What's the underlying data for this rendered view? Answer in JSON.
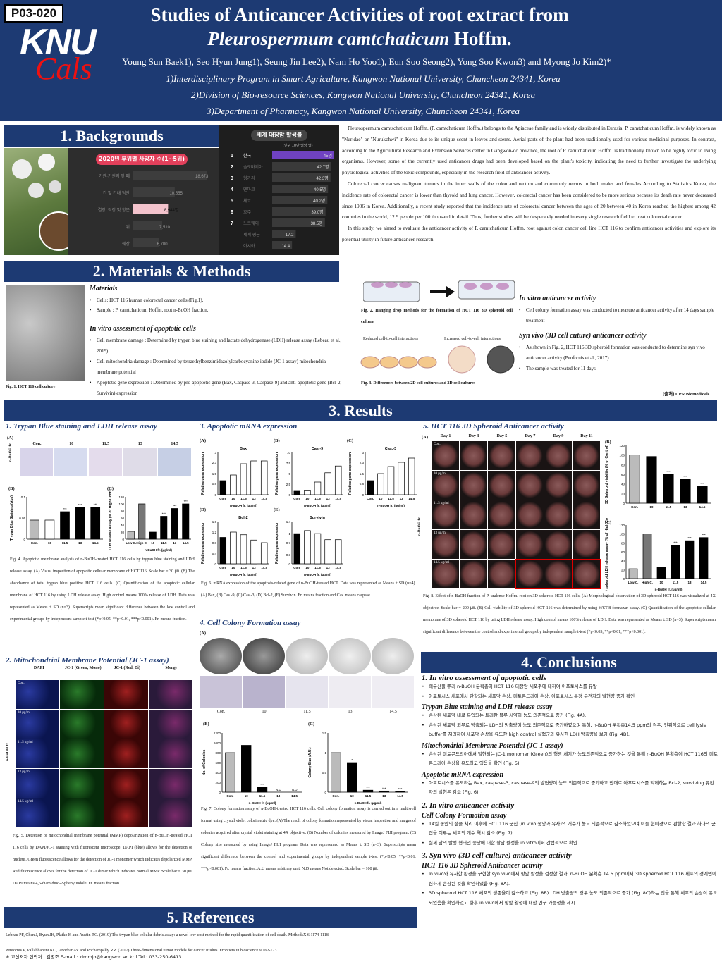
{
  "poster_id": "P03-020",
  "logo": {
    "text1": "KNU",
    "text2": "Cals"
  },
  "title": {
    "line1": "Studies of Anticancer Activities of root extract from",
    "line2_italic": "Pleurospermum camtchaticum",
    "line2_rest": " Hoffm."
  },
  "authors": "Young Sun Baek1), Seo Hyun Jung1), Seung Jin Lee2), Nam Ho Yoo1), Eun Soo Seong2), Yong Soo Kwon3) and Myong Jo Kim2)*",
  "affiliations": [
    "1)Interdisciplinary Program in Smart Agriculture, Kangwon National University, Chuncheon 24341, Korea",
    "2)Division of Bio-resource Sciences, Kangwon National University, Chuncheon 24341, Korea",
    "3)Department of Pharmacy, Kangwon National University, Chuncheon 24341, Korea"
  ],
  "sections": {
    "backgrounds": "1. Backgrounds",
    "methods": "2. Materials & Methods",
    "results": "3. Results",
    "conclusions": "4. Conclusions",
    "references": "5. References"
  },
  "bg_chart1": {
    "title": "2020년 부위별 사망자 수(1~5위)",
    "rows": [
      {
        "label": "기관·기관지 및 폐",
        "value": "18,673",
        "v": 100
      },
      {
        "label": "간 및 간내 담관",
        "value": "10,555",
        "v": 57
      },
      {
        "label": "결장, 직장 및 항문",
        "value": "8,944명",
        "v": 48,
        "highlight": true
      },
      {
        "label": "위",
        "value": "7,510",
        "v": 40
      },
      {
        "label": "췌장",
        "value": "6,700",
        "v": 36
      }
    ]
  },
  "bg_chart2": {
    "title": "세계 대장암 발생률",
    "subtitle": "(인구 10만 명당 명)",
    "rows": [
      {
        "n": "1",
        "label": "한국",
        "value": "45명",
        "v": 100,
        "highlight": true
      },
      {
        "n": "2",
        "label": "슬로바키아",
        "value": "42.7명",
        "v": 95
      },
      {
        "n": "3",
        "label": "헝가리",
        "value": "42.3명",
        "v": 94
      },
      {
        "n": "4",
        "label": "덴마크",
        "value": "40.5명",
        "v": 90
      },
      {
        "n": "5",
        "label": "체코",
        "value": "40.2명",
        "v": 89
      },
      {
        "n": "6",
        "label": "호주",
        "value": "39.0명",
        "v": 86
      },
      {
        "n": "7",
        "label": "노르웨이",
        "value": "38.5명",
        "v": 85
      },
      {
        "n": "",
        "label": "세계 평균",
        "value": "17.2",
        "v": 38
      },
      {
        "n": "",
        "label": "아시아",
        "value": "14.4",
        "v": 32
      }
    ]
  },
  "background_text": [
    "Pleurospermum camtschaticum Hoffm. (P. camtchaticum Hoffm.) belongs to the Apiaceae family and is widely distributed in Eurasia. P. camtchaticum Hoffm. is widely known as \"Nuridae\" or \"Nurukchwi\" in Korea due to its unique scent in leaves and stems. Aerial parts of the plant had been traditionally used for various medicinal purposes. In contrast, according to the Agricultural Research and Extension Services center in Gangwon-do province, the root of P. camtchaticum Hoffm. is traditionally known to be highly toxic to living organisms. However, some of the currently used anticancer drugs had been developed based on the plant's toxicity, indicating the need to further investigate the underlying physiological activities of the toxic compounds, especially in the research field of anticancer activity.",
    "Colorectal cancer causes malignant tumors in the inner walls of the colon and rectum and commonly occurs in both males and females According to Statistics Korea, the incidence rate of colorectal cancer is lower than thyroid and lung cancer. However, colorectal cancer has been considered to be more serious because its death rate never decreased since 1986 in Korea. Additionally, a recent study reported that the incidence rate of colorectal cancer between the ages of 20 between 40 in Korea reached the highest among 42 countries in the world, 12.9 people per 100 thousand in detail. Thus, further studies will be desperately needed in every single research field to treat colorectal cancer.",
    "In this study, we aimed to evaluate the anticancer activity of P. camtchaticum Hoffm. root against colon cancer cell line HCT 116 to confirm anticancer activities and explore its potential utility in future anticancer research."
  ],
  "methods": {
    "materials_h": "Materials",
    "materials": [
      "Cells: HCT 116 human colorectal cancer cells (Fig.1).",
      "Sample : P. camtchaticum Hoffm. root n-BuOH fraction."
    ],
    "apop_h": "In vitro assessment of apoptotic cells",
    "apop": [
      "Cell membrane damage : Determined by trypan blue staining and lactate dehydrogenase (LDH) release assay (Lebeau et al., 2019)",
      "Cell mitochondria damage : Determined by tetraethylbenzimidazolylcarbocyanine iodide (JC-1 assay) mitochondria membrane potential",
      "Apoptotic gene expression : Determined by pro-apoptotic gene (Bax, Caspase-3, Caspase-9) and anti-apoptotic gene (Bcl-2, Survivin) expression"
    ],
    "fig1": "Fig. 1. HCT 116 cell culture",
    "fig2": "Fig. 2. Hanging drop methods for the formation of HCT 116 3D spheroid cell culture",
    "fig3_a": "Reduced cell-to-cell interactions",
    "fig3_b": "Increased cell-to-cell interactions",
    "fig3": "Fig. 3. Differences between 2D cell cultures and 3D cell cultures",
    "vitro_h": "In vitro anticancer activity",
    "vitro": [
      "Cell colony formation assay was conducted to measure anticancer activity after 14 days sample treatment"
    ],
    "synvivo_h": "Syn vivo (3D cell cuture) anticancer activity",
    "synvivo": [
      "As shown in Fig. 2, HCT 116 3D spheroid formation was conducted to determine syn vivo anticancer activity (Penfornis et al., 2017).",
      "The sample was treated for 11 days"
    ],
    "source": "[출처] UPMBiomedicals"
  },
  "r1": {
    "head": "1. Trypan Blue staining and LDH release assay",
    "conc_labels": [
      "Con.",
      "10",
      "11.5",
      "13",
      "14.5"
    ],
    "ylabel_b": "Trypan Blue Staining (Abs)",
    "ylabel_c": "LDH release assay (% of High Control)",
    "xlabel": "n-BuOH fr. (μg/ml)",
    "side": "n-BuOH fr.",
    "caption": "Fig. 4. Apoptotic membrane analysis of n-BuOH-treated HCT 116 cells by trypan blue staining and LDH release assay. (A) Visual inspection of apoptotic cellular membrane of HCT 116. Scale bar = 30 ㎛. (B) The absorbance of total trypan blue positive HCT 116 cells. (C) Quantification of the apoptotic cellular membrane of HCT 116 by using LDH release assay. High control means 100% release of LDH. Data was represented as Means ± SD (n=3). Superscripts mean significant difference between the low control and experimental groups by independent sample t-test (*p<0.05, **p<0.01, ***p<0.001). Fr. means fraction."
  },
  "r2": {
    "head": "2. Mitochondrial Membrane Potential (JC-1 assay)",
    "cols": [
      "DAPI",
      "JC-1 (Green, Mono)",
      "JC-1 (Red, Di)",
      "Merge"
    ],
    "rows": [
      "Con.",
      "10 μg/ml",
      "11.5 μg/ml",
      "13 μg/ml",
      "14.5 μg/ml"
    ],
    "side": "n-BuOH fr.",
    "caption": "Fig. 5. Detection of mitochondrial membrane potential (MMP) depolarization of n-BuOH-treated HCT 116 cells by DAPI/JC-1 staining with fluorescent microscope. DAPI (blue) allows for the detection of nucleus. Green fluorescence allows for the detection of JC-1 monomer which indicates depolarized MMP. Red fluorescence allows for the detection of JC-1 dimer which indicates normal MMP. Scale bar = 30 ㎛. DAPI means 4,6-diamidino-2-phenylindole. Fr. means fraction."
  },
  "r3": {
    "head": "3. Apoptotic mRNA expression",
    "genes": [
      "Bax",
      "Cas.-9",
      "Cas.-3",
      "Bcl-2",
      "Survivin"
    ],
    "ylabel": "Relative gene expression",
    "xlabel": "n-BuOH fr. (μg/ml)",
    "caption": "Fig. 6. mRNA expression of the apoptosis-related gene of n-BuOH-treated HCT. Data was represented as Means ± SD (n=4). (A) Bax, (B) Cas.-9, (C) Cas.-3, (D) Bcl-2, (E) Survivin. Fr. means fraction and Cas. means caspase."
  },
  "r4": {
    "head": "4. Cell Colony Formation assay",
    "ylabel_b": "No. of Colonies",
    "ylabel_c": "Colony Size (A.U.)",
    "xlabel": "n-BuOH fr. (μg/ml)",
    "nd": "N.D",
    "caption": "Fig. 7. Colony formation assay of n-BuOH-treated HCT 116 cells. Cell colony formation assay is carried out in a multiwell format using crystal violet colorimetric dye. (A) The result of colony formation represented by visual inspection and images of colonies acquired after crystal violet staining at 4X objective. (B) Number of colonies measured by ImageJ FIJI program. (C) Colony size measured by using ImageJ FIJI program. Data was represented as Means ± SD (n=3). Superscripts mean significant difference between the control and experimental groups by independent sample t-test (*p<0.05, **p<0.01, ***p<0.001). Fr. means fraction. A.U means arbitrary unit. N.D means Not detected. Scale bar = 100 ㎛."
  },
  "r5": {
    "head": "5. HCT 116 3D Spheroid Anticancer activity",
    "days": [
      "Day 1",
      "Day 3",
      "Day 5",
      "Day 7",
      "Day 9",
      "Day 11"
    ],
    "rows": [
      "Con.",
      "10 μg/ml",
      "11.5 μg/ml",
      "13 μg/ml",
      "14.5 μg/ml"
    ],
    "side": "n-BuOH fr.",
    "ylabel_b": "3D Spheroid viability (% of Control)",
    "ylabel_c": "3D spheroid LDH release assay (% of High Control)",
    "xlabel": "n-BuOH fr. (μg/ml)",
    "caption": "Fig. 8. Effect of n-BuOH fraction of P. uralense Hoffm. root on 3D spheroid HCT 116 cells. (A) Morphological observation of 3D spheroid HCT 116 was visualized at 4X objective. Scale bar = 200 ㎛. (B) Cell viability of 3D spheroid HCT 116 was determined by using WST-8 formazan assay. (C) Quantification of the apoptotic cellular membrane of 3D spheroid HCT 116 by using LDH release assay. High control means 100% release of LDH. Data was represented as Means ± SD (n=3). Superscripts mean significant difference between the control and experimental groups by independent sample t-test (*p<0.05, **p<0.01, ***p<0.001)."
  },
  "conclusions": {
    "h1": "1. In vitro assessment of apoptotic cells",
    "c1": [
      "꽤우산풀 뿌리 n-BuOH 분획층이 HCT 116 대장암 세포주에 대하여 아포토시스를 유발",
      "아포토시스 세포에서 관찰되는 세포막 손상, 미토콘드리아 손상, 아포토시스 특정 유전자의 발현량 증가 확인"
    ],
    "h1a": "Trypan Blue staining and LDH release assay",
    "c1a": [
      "손상된 세포막 내로 유입되는 트리판 블루 시약이 농도 의존적으로 증가 (Fig. 4A).",
      "손상된 세포막 외부로 방출되는 LDH의 방출량이 농도 의존적으로 증가하였으며 특히, n-BuOH 분획층14.5 ppm의 경우, 인위적으로 cell lysis buffer를 처리하여 세포막 손상을 유도한 high control 실험군과 유사한 LDH 방출량을 보임 (Fig. 4B)."
    ],
    "h1b": "Mitochondrial Membrane Potential (JC-1 assay)",
    "c1b": [
      "손상된 미토콘드리아에서 발현되는 JC-1 monomer (Green)의 형광 세기가 농도의존적으로 증가하는 것을 통해 n-BuOH 분획층이 HCT 116의 미토콘드리아 손상을 유도하고 있음을 확인 (Fig. 5)."
    ],
    "h1c": "Apoptotic mRNA expression",
    "c1c": [
      "아포토시스를 유도하는 Bax, caspase-3, caspase-9의 발현량이 농도 의존적으로 증가하고 반대로 아포토시스를 억제하는 Bcl-2, surviving 유전자의 발현은 감소 (Fig. 6)."
    ],
    "h2": "2. In vitro anticancer activity",
    "h2a": "Cell Colony Formation assay",
    "c2a": [
      "14일 동안의 샘플 처리 이후에 HCT 116 군집 (in vivo 종양과 유사)의 개수가 농도 의존적으로 감소하였으며 이를 현미경으로 관찰한 결과 하나의 군집을 이루는 세포의 개수 역시 감소 (Fig. 7).",
      "실제 암의 발병 형태인 종양에 대한 항암 활성을 in vitro에서 간접적으로 확인"
    ],
    "h3": "3. Syn vivo (3D cell culture) anticancer activity",
    "h3a": "HCT 116 3D Spheroid Anticancer activity",
    "c3a": [
      "In vivo와 유사한 환경을 구현한 syn vivo에서 항암 활성을 검정한 결과, n-BuOH 분획층 14.5 ppm에서 3D spheroid HCT 116 세포의 경계면이 심하게 손상된 것을 확인하였음 (Fig. 8A).",
      "3D spheroid HCT 116 세포의 생존율이 감소하고 (Fig. 8B) LDH 방출량의 경우 농도 의존적으로 증가 (Fig. 8C)하는 것을 통해 세포의 손상이 유도되었음을 확인하였고 향후 in vivo에서 항암 활성에 대한 연구 가능성을 제시"
    ]
  },
  "references": [
    "Lebeau PF, Chen J, Byun JH, Platko K and Austin RC. (2019) The trypan blue cellular debris assay: a novel low-cost method for the rapid quantification of cell death. MethodsX 6:1174-1118",
    "Penfornis P, Vallabhaneni KC, Janorkar AV and Pochampally RR. (2017) Three-dimensional tumor models for cancer studies. Frontiers in bioscience 9:162-173"
  ],
  "contact": "※ 교신저자 연락처 : 김명조    E-mail : kimmjo@kangwon.ac.kr  l  Tel : 033-250-6413",
  "chart_data": [
    {
      "type": "bar",
      "id": "4B",
      "categories": [
        "Con.",
        "10",
        "11.5",
        "13",
        "14.5"
      ],
      "values": [
        0.045,
        0.045,
        0.065,
        0.075,
        0.076
      ],
      "ylim": [
        0,
        0.1
      ],
      "sig": [
        "",
        "",
        "***",
        "***",
        "***"
      ]
    },
    {
      "type": "bar",
      "id": "4C",
      "categories": [
        "Low C.",
        "High C.",
        "10",
        "11.5",
        "13",
        "14.5"
      ],
      "values": [
        22,
        100,
        20,
        65,
        87,
        100
      ],
      "ylim": [
        0,
        120
      ],
      "sig": [
        "",
        "",
        "",
        "***",
        "***",
        "***"
      ]
    },
    {
      "type": "bar",
      "id": "6A",
      "categories": [
        "Con.",
        "10",
        "11.5",
        "13",
        "14.5"
      ],
      "values": [
        1.0,
        1.4,
        2.2,
        2.4,
        2.4
      ],
      "ylim": [
        0,
        3.0
      ]
    },
    {
      "type": "bar",
      "id": "6B",
      "categories": [
        "Con.",
        "10",
        "11.5",
        "13",
        "14.5"
      ],
      "values": [
        1.0,
        1.1,
        3.0,
        5.2,
        6.8
      ],
      "ylim": [
        0,
        10
      ]
    },
    {
      "type": "bar",
      "id": "6C",
      "categories": [
        "Con.",
        "10",
        "11.5",
        "13",
        "14.5"
      ],
      "values": [
        1.0,
        1.5,
        2.0,
        2.3,
        2.6
      ],
      "ylim": [
        0,
        3.0
      ]
    },
    {
      "type": "bar",
      "id": "6D",
      "categories": [
        "Con.",
        "10",
        "11.5",
        "13",
        "14.5"
      ],
      "values": [
        1.0,
        1.2,
        1.1,
        0.9,
        0.8
      ],
      "ylim": [
        0,
        1.6
      ]
    },
    {
      "type": "bar",
      "id": "6E",
      "categories": [
        "Con.",
        "10",
        "11.5",
        "13",
        "14.5"
      ],
      "values": [
        1.0,
        1.1,
        1.0,
        0.8,
        0.8
      ],
      "ylim": [
        0,
        1.4
      ]
    },
    {
      "type": "bar",
      "id": "7B",
      "categories": [
        "Con.",
        "10",
        "11.5",
        "13",
        "14.5"
      ],
      "values": [
        800,
        950,
        100,
        0,
        0
      ],
      "ylim": [
        0,
        1200
      ],
      "sig": [
        "",
        "",
        "***",
        "N.D",
        "N.D"
      ]
    },
    {
      "type": "bar",
      "id": "7C",
      "categories": [
        "Con.",
        "10",
        "11.5",
        "13",
        "14.5"
      ],
      "values": [
        1.0,
        0.75,
        0.05,
        0.03,
        0.02
      ],
      "ylim": [
        0,
        1.5
      ],
      "sig": [
        "",
        "*",
        "***",
        "***",
        "***"
      ]
    },
    {
      "type": "bar",
      "id": "8B",
      "categories": [
        "Con.",
        "10",
        "11.5",
        "13",
        "14.5"
      ],
      "values": [
        100,
        97,
        60,
        50,
        35
      ],
      "ylim": [
        0,
        120
      ],
      "sig": [
        "",
        "",
        "***",
        "***",
        "***"
      ]
    },
    {
      "type": "bar",
      "id": "8C",
      "categories": [
        "Low C.",
        "High C.",
        "10",
        "11.5",
        "13",
        "14.5"
      ],
      "values": [
        22,
        100,
        25,
        75,
        85,
        92
      ],
      "ylim": [
        0,
        120
      ],
      "sig": [
        "",
        "",
        "",
        "***",
        "***",
        "***"
      ]
    }
  ]
}
